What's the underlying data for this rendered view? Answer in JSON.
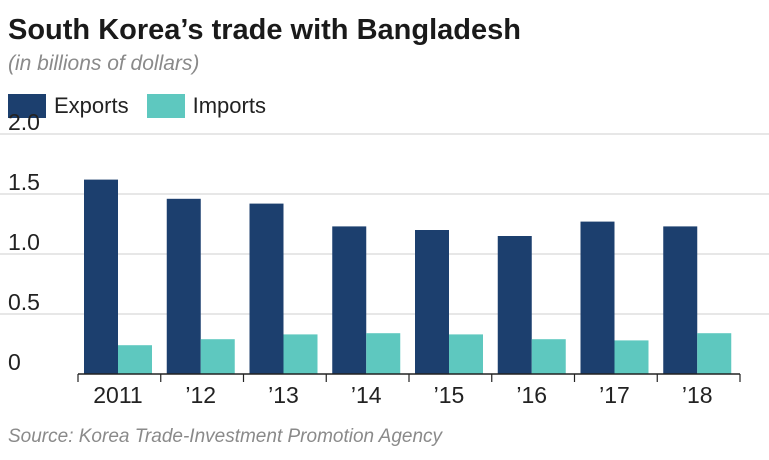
{
  "chart_data": {
    "type": "bar",
    "title": "South Korea’s trade with Bangladesh",
    "subtitle": "(in billions of dollars)",
    "categories": [
      "2011",
      "’12",
      "’13",
      "’14",
      "’15",
      "’16",
      "’17",
      "’18"
    ],
    "series": [
      {
        "name": "Exports",
        "color": "#1c3f6e",
        "values": [
          1.62,
          1.46,
          1.42,
          1.23,
          1.2,
          1.15,
          1.27,
          1.23
        ]
      },
      {
        "name": "Imports",
        "color": "#5ec8bf",
        "values": [
          0.24,
          0.29,
          0.33,
          0.34,
          0.33,
          0.29,
          0.28,
          0.34
        ]
      }
    ],
    "yticks": [
      "0",
      "0.5",
      "1.0",
      "1.5",
      "2.0"
    ],
    "ylim": [
      0,
      2.0
    ],
    "grid": true,
    "legend": "top-left"
  },
  "source": "Source: Korea Trade-Investment Promotion Agency"
}
